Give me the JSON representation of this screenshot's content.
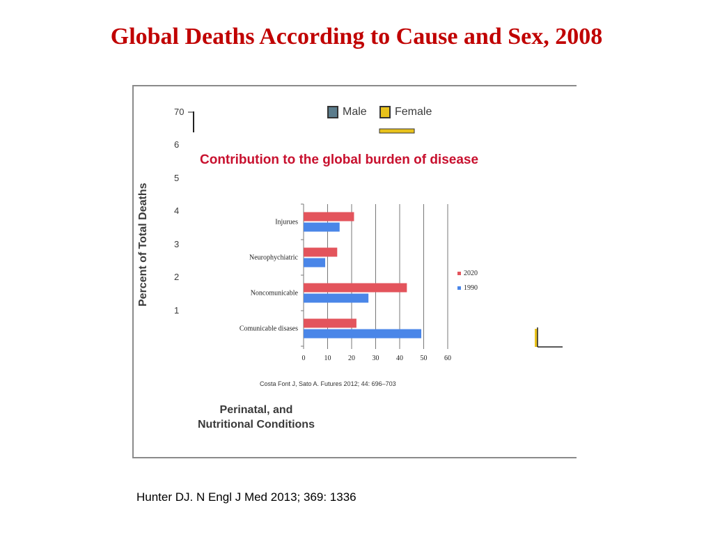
{
  "slide": {
    "title": "Global Deaths According to Cause and Sex, 2008",
    "reference": "Hunter DJ. N Engl J Med 2013; 369: 1336"
  },
  "background_figure": {
    "y_label": "Percent of Total Deaths",
    "y_ticks_visible": [
      "70",
      "6",
      "5",
      "4",
      "3",
      "2",
      "1"
    ],
    "legend": [
      {
        "label": "Male",
        "color": "#5b7c8c"
      },
      {
        "label": "Female",
        "color": "#e8c21c"
      }
    ],
    "bottom_label_line1": "Perinatal, and",
    "bottom_label_line2": "Nutritional Conditions"
  },
  "chart_data": {
    "type": "bar",
    "orientation": "horizontal",
    "title": "Contribution to the global burden of disease",
    "categories": [
      "Injurues",
      "Neurophychiatric",
      "Noncomunicable",
      "Comunicable disases"
    ],
    "series": [
      {
        "name": "2020",
        "color": "#e3545c",
        "values": [
          21,
          14,
          43,
          22
        ]
      },
      {
        "name": "1990",
        "color": "#4a86e8",
        "values": [
          15,
          9,
          27,
          49
        ]
      }
    ],
    "xlim": [
      0,
      60
    ],
    "xticks": [
      "0",
      "10",
      "20",
      "30",
      "40",
      "50",
      "60"
    ],
    "grid": true,
    "legend_position": "right",
    "citation": "Costa Font J, Sato A. Futures 2012; 44: 696–703"
  }
}
